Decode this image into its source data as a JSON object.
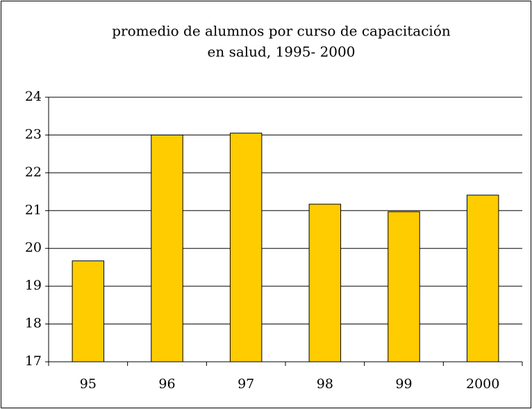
{
  "chart_data": {
    "type": "bar",
    "title": [
      "promedio de alumnos por curso de capacitación",
      "en salud, 1995- 2000"
    ],
    "categories": [
      "95",
      "96",
      "97",
      "98",
      "99",
      "2000"
    ],
    "values": [
      19.67,
      23.0,
      23.05,
      21.17,
      20.97,
      21.41
    ],
    "color": "#ffcc00",
    "ylim": [
      17,
      24
    ],
    "yticks": [
      17,
      18,
      19,
      20,
      21,
      22,
      23,
      24
    ],
    "grid": true
  }
}
